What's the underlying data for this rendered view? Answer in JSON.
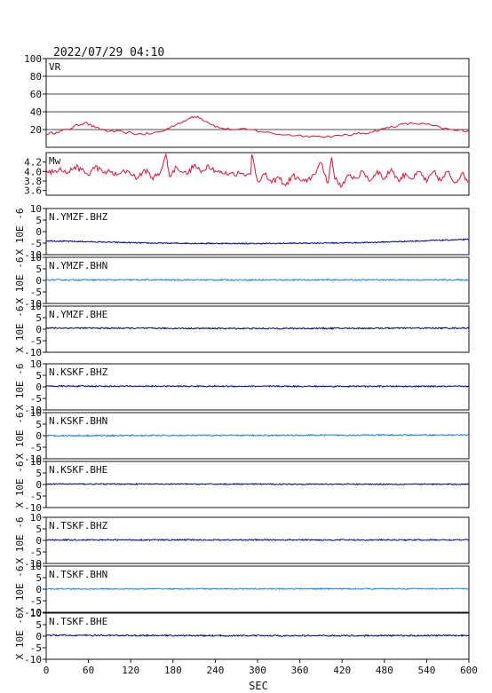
{
  "header": {
    "timestamp": "2022/07/29 04:10"
  },
  "ylabel": "X 10E -6",
  "chart_data": {
    "type": "line",
    "xlabel": "SEC",
    "x_ticks": [
      "0",
      "60",
      "120",
      "180",
      "240",
      "300",
      "360",
      "420",
      "480",
      "540",
      "600"
    ],
    "xlim": [
      0,
      600
    ],
    "panels": [
      {
        "label": "VR",
        "ylim": [
          0,
          100
        ],
        "y_ticks": [
          "100",
          "80",
          "60",
          "40",
          "20"
        ],
        "grid": true,
        "color": "#d4143c",
        "kind": "series",
        "points": [
          [
            0,
            15
          ],
          [
            15,
            17
          ],
          [
            30,
            20
          ],
          [
            45,
            25
          ],
          [
            55,
            28
          ],
          [
            70,
            22
          ],
          [
            90,
            18
          ],
          [
            110,
            17
          ],
          [
            130,
            15
          ],
          [
            145,
            15
          ],
          [
            165,
            18
          ],
          [
            185,
            26
          ],
          [
            205,
            33
          ],
          [
            215,
            35
          ],
          [
            230,
            28
          ],
          [
            245,
            22
          ],
          [
            265,
            20
          ],
          [
            290,
            20
          ],
          [
            310,
            17
          ],
          [
            340,
            14
          ],
          [
            370,
            13
          ],
          [
            390,
            12
          ],
          [
            420,
            13
          ],
          [
            440,
            15
          ],
          [
            460,
            17
          ],
          [
            480,
            21
          ],
          [
            500,
            25
          ],
          [
            520,
            27
          ],
          [
            540,
            26
          ],
          [
            560,
            22
          ],
          [
            580,
            19
          ],
          [
            600,
            19
          ]
        ]
      },
      {
        "label": "Mw",
        "ylim": [
          3.5,
          4.4
        ],
        "y_ticks": [
          "4.2",
          "4.0",
          "3.8",
          "3.6"
        ],
        "grid": false,
        "color": "#d4143c",
        "kind": "series",
        "points": [
          [
            0,
            4.02
          ],
          [
            10,
            3.98
          ],
          [
            20,
            4.08
          ],
          [
            30,
            3.96
          ],
          [
            40,
            4.1
          ],
          [
            50,
            4.04
          ],
          [
            60,
            3.92
          ],
          [
            70,
            4.12
          ],
          [
            80,
            3.98
          ],
          [
            90,
            4.0
          ],
          [
            100,
            3.92
          ],
          [
            115,
            4.02
          ],
          [
            130,
            3.86
          ],
          [
            140,
            4.04
          ],
          [
            150,
            3.88
          ],
          [
            160,
            3.92
          ],
          [
            170,
            4.36
          ],
          [
            175,
            3.9
          ],
          [
            185,
            4.1
          ],
          [
            200,
            3.94
          ],
          [
            210,
            4.14
          ],
          [
            220,
            3.98
          ],
          [
            230,
            4.14
          ],
          [
            240,
            4.02
          ],
          [
            250,
            3.96
          ],
          [
            260,
            3.96
          ],
          [
            275,
            3.96
          ],
          [
            290,
            3.94
          ],
          [
            292,
            4.36
          ],
          [
            300,
            3.8
          ],
          [
            310,
            3.94
          ],
          [
            320,
            3.76
          ],
          [
            330,
            3.88
          ],
          [
            340,
            3.7
          ],
          [
            350,
            3.92
          ],
          [
            360,
            3.82
          ],
          [
            370,
            3.78
          ],
          [
            380,
            3.94
          ],
          [
            390,
            4.18
          ],
          [
            400,
            3.76
          ],
          [
            405,
            4.3
          ],
          [
            410,
            3.84
          ],
          [
            420,
            3.7
          ],
          [
            430,
            3.92
          ],
          [
            440,
            3.86
          ],
          [
            450,
            4.0
          ],
          [
            460,
            3.8
          ],
          [
            470,
            4.02
          ],
          [
            480,
            3.84
          ],
          [
            490,
            4.06
          ],
          [
            500,
            3.8
          ],
          [
            510,
            3.96
          ],
          [
            520,
            3.84
          ],
          [
            530,
            4.0
          ],
          [
            540,
            3.78
          ],
          [
            550,
            4.0
          ],
          [
            560,
            3.8
          ],
          [
            570,
            4.0
          ],
          [
            580,
            3.76
          ],
          [
            590,
            3.96
          ],
          [
            600,
            3.78
          ]
        ]
      },
      {
        "label": "N.YMZF.BHZ",
        "ylim": [
          -10,
          10
        ],
        "y_ticks": [
          "10",
          "5",
          "0",
          "-5",
          "-10"
        ],
        "grid": false,
        "color": "#0000a0",
        "kind": "trace",
        "base": [
          [
            0,
            -4.0
          ],
          [
            150,
            -5.0
          ],
          [
            300,
            -5.2
          ],
          [
            450,
            -4.8
          ],
          [
            600,
            -3.4
          ]
        ],
        "noise": 0.25
      },
      {
        "label": "N.YMZF.BHN",
        "ylim": [
          -10,
          10
        ],
        "y_ticks": [
          "10",
          "5",
          "0",
          "-5",
          "-10"
        ],
        "grid": false,
        "color": "#1e7fd8",
        "kind": "trace",
        "base": [
          [
            0,
            0.2
          ],
          [
            600,
            0.2
          ]
        ],
        "noise": 0.3
      },
      {
        "label": "N.YMZF.BHE",
        "ylim": [
          -10,
          10
        ],
        "y_ticks": [
          "10",
          "5",
          "0",
          "-5",
          "-10"
        ],
        "grid": false,
        "color": "#000070",
        "kind": "trace",
        "base": [
          [
            0,
            0.5
          ],
          [
            300,
            0.3
          ],
          [
            600,
            0.5
          ]
        ],
        "noise": 0.3
      },
      {
        "label": "N.KSKF.BHZ",
        "ylim": [
          -10,
          10
        ],
        "y_ticks": [
          "10",
          "5",
          "0",
          "-5",
          "-10"
        ],
        "grid": false,
        "color": "#0000a0",
        "kind": "trace",
        "base": [
          [
            0,
            0.3
          ],
          [
            600,
            0.2
          ]
        ],
        "noise": 0.28
      },
      {
        "label": "N.KSKF.BHN",
        "ylim": [
          -10,
          10
        ],
        "y_ticks": [
          "10",
          "5",
          "0",
          "-5",
          "-10"
        ],
        "grid": false,
        "color": "#1e7fd8",
        "kind": "trace",
        "base": [
          [
            0,
            0.0
          ],
          [
            600,
            0.3
          ]
        ],
        "noise": 0.3
      },
      {
        "label": "N.KSKF.BHE",
        "ylim": [
          -10,
          10
        ],
        "y_ticks": [
          "10",
          "5",
          "0",
          "-5",
          "-10"
        ],
        "grid": false,
        "color": "#000070",
        "kind": "trace",
        "base": [
          [
            0,
            0.2
          ],
          [
            600,
            0.1
          ]
        ],
        "noise": 0.25
      },
      {
        "label": "N.TSKF.BHZ",
        "ylim": [
          -10,
          10
        ],
        "y_ticks": [
          "10",
          "5",
          "0",
          "-5",
          "-10"
        ],
        "grid": false,
        "color": "#0000a0",
        "kind": "trace",
        "base": [
          [
            0,
            0.2
          ],
          [
            600,
            0.2
          ]
        ],
        "noise": 0.28
      },
      {
        "label": "N.TSKF.BHN",
        "ylim": [
          -10,
          10
        ],
        "y_ticks": [
          "10",
          "5",
          "0",
          "-5",
          "-10"
        ],
        "grid": false,
        "color": "#1e7fd8",
        "kind": "trace",
        "base": [
          [
            0,
            0.1
          ],
          [
            600,
            0.2
          ]
        ],
        "noise": 0.25
      },
      {
        "label": "N.TSKF.BHE",
        "ylim": [
          -10,
          10
        ],
        "y_ticks": [
          "10",
          "5",
          "0",
          "-5",
          "-10"
        ],
        "grid": false,
        "color": "#000070",
        "kind": "trace",
        "base": [
          [
            0,
            0.4
          ],
          [
            300,
            0.2
          ],
          [
            600,
            0.3
          ]
        ],
        "noise": 0.3
      }
    ]
  }
}
